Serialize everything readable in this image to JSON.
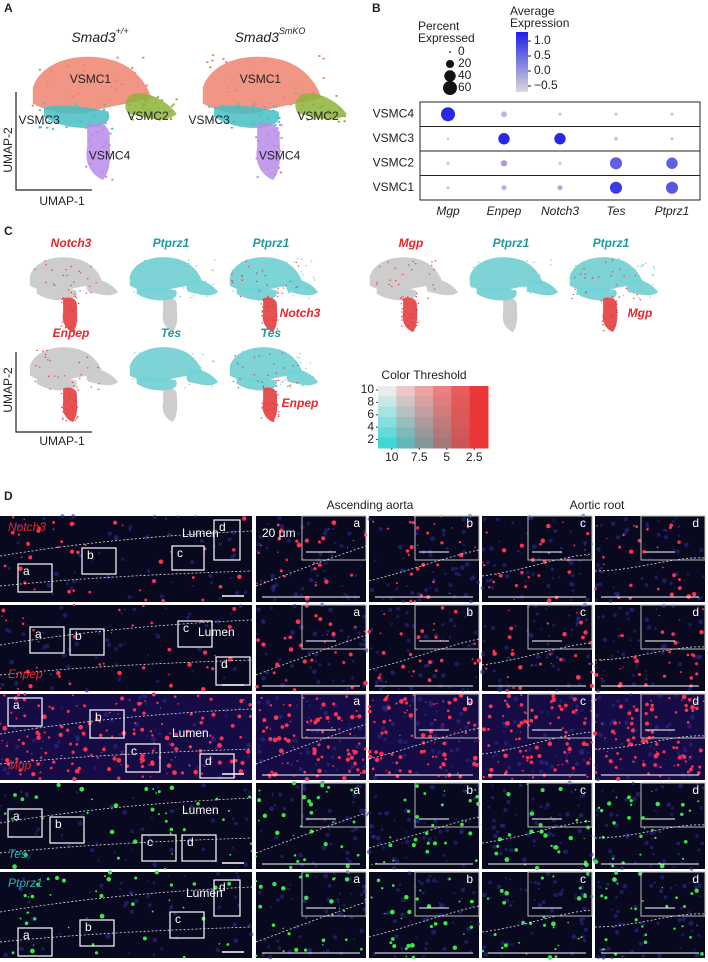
{
  "panel_a": {
    "label": "A",
    "titles": [
      {
        "gene": "Smad3",
        "genotype": "+/+"
      },
      {
        "gene": "Smad3",
        "genotype": "SmKO"
      }
    ],
    "clusters": [
      "VSMC1",
      "VSMC2",
      "VSMC3",
      "VSMC4"
    ],
    "x_axis": "UMAP-1",
    "y_axis": "UMAP-2"
  },
  "panel_b": {
    "label": "B",
    "size_title": [
      "Percent",
      "Expressed"
    ],
    "size_ticks": [
      0,
      20,
      40,
      60
    ],
    "color_title": [
      "Average",
      "Expression"
    ],
    "color_ticks": [
      {
        "value": 1,
        "label": "1.0"
      },
      0.5,
      {
        "value": 0,
        "label": "0.0"
      },
      {
        "value": -0.5,
        "label": "−0.5"
      }
    ],
    "color_lim": [
      -0.7,
      1.3
    ],
    "color_range": [
      "#d9d9d9",
      "#1f1fe6"
    ],
    "rows": [
      "VSMC4",
      "VSMC3",
      "VSMC2",
      "VSMC1"
    ],
    "genes": [
      "Mgp",
      "Enpep",
      "Notch3",
      "Tes",
      "Ptprz1"
    ],
    "percent": [
      [
        60,
        10,
        3,
        3,
        3
      ],
      [
        2,
        40,
        40,
        5,
        3
      ],
      [
        3,
        12,
        3,
        45,
        40
      ],
      [
        3,
        8,
        8,
        45,
        45
      ]
    ],
    "expression": [
      [
        1.2,
        -0.3,
        -0.5,
        -0.5,
        -0.5
      ],
      [
        -0.5,
        1.2,
        1.2,
        -0.5,
        -0.5
      ],
      [
        -0.5,
        -0.1,
        -0.5,
        0.6,
        0.6
      ],
      [
        -0.5,
        -0.3,
        -0.2,
        1.0,
        0.7
      ]
    ]
  },
  "panel_c": {
    "label": "C",
    "tiles": [
      {
        "labels": [
          {
            "text": "Notch3",
            "color": "#e8262b"
          }
        ]
      },
      {
        "labels": [
          {
            "text": "Ptprz1",
            "color": "#1f9a9e"
          }
        ]
      },
      {
        "labels": [
          {
            "text": "Ptprz1",
            "color": "#1f9a9e"
          },
          {
            "text": "Notch3",
            "color": "#e8262b"
          }
        ]
      },
      {
        "labels": [
          {
            "text": "Mgp",
            "color": "#e8262b"
          }
        ]
      },
      {
        "labels": [
          {
            "text": "Ptprz1",
            "color": "#1f9a9e"
          }
        ]
      },
      {
        "labels": [
          {
            "text": "Ptprz1",
            "color": "#1f9a9e"
          },
          {
            "text": "Mgp",
            "color": "#e8262b"
          }
        ]
      },
      {
        "labels": [
          {
            "text": "Enpep",
            "color": "#e8262b"
          }
        ]
      },
      {
        "labels": [
          {
            "text": "Tes",
            "color": "#1f9a9e"
          }
        ]
      },
      {
        "labels": [
          {
            "text": "Tes",
            "color": "#1f9a9e"
          },
          {
            "text": "Enpep",
            "color": "#e8262b"
          }
        ]
      }
    ],
    "x_axis": "UMAP-1",
    "y_axis": "UMAP-2",
    "legend_title": "Color Threshold",
    "legend_xticks": [
      10,
      7.5,
      5,
      2.5
    ],
    "legend_yticks": [
      10,
      8,
      6,
      4,
      2
    ]
  },
  "panel_d": {
    "label": "D",
    "headers": [
      "Ascending aorta",
      "Aortic root"
    ],
    "rows": [
      {
        "gene": "Notch3",
        "color": "#e8262b"
      },
      {
        "gene": "Enpep",
        "color": "#e8262b"
      },
      {
        "gene": "Mgp",
        "color": "#e8262b"
      },
      {
        "gene": "Tes",
        "color": "#1fb3b8"
      },
      {
        "gene": "Ptprz1",
        "color": "#1fb3b8"
      }
    ],
    "boxes": [
      "a",
      "b",
      "c",
      "d"
    ],
    "lumen": "Lumen",
    "scale": "20 μm"
  }
}
